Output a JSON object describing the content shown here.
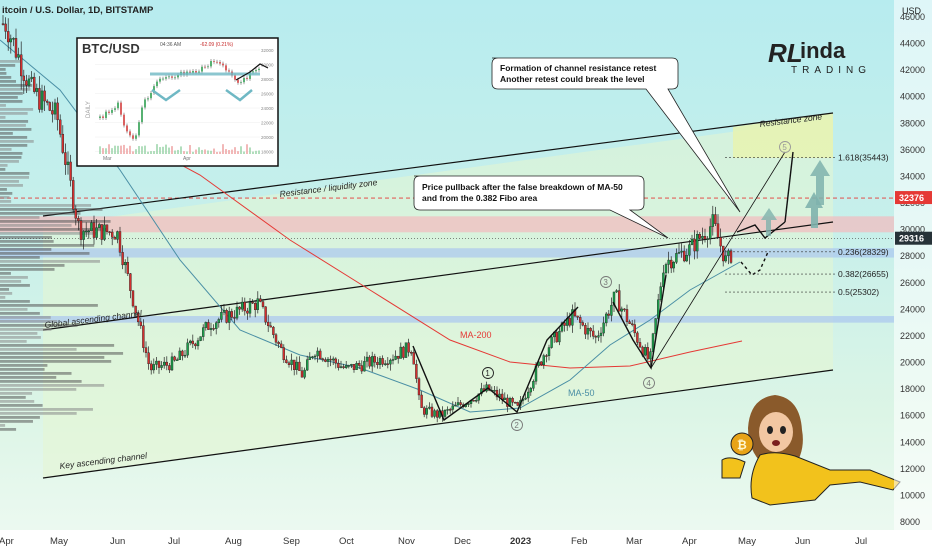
{
  "header": {
    "symbol_line": "itcoin / U.S. Dollar, 1D, BITSTAMP",
    "currency": "USD"
  },
  "logo": {
    "text_top": "inda",
    "text_bottom": "TRADING",
    "initials": "RL"
  },
  "price_axis": {
    "ticks": [
      "46000",
      "44000",
      "42000",
      "40000",
      "38000",
      "36000",
      "34000",
      "32000",
      "30000",
      "28000",
      "26000",
      "24000",
      "22000",
      "20000",
      "18000",
      "16000",
      "14000",
      "12000",
      "10000",
      "8000"
    ],
    "badges": [
      {
        "text": "32376",
        "color": "#e53935"
      },
      {
        "text": "29316",
        "color": "#263238"
      }
    ]
  },
  "time_axis": [
    "Apr",
    "May",
    "Jun",
    "Jul",
    "Aug",
    "Sep",
    "Oct",
    "Nov",
    "Dec",
    "2023",
    "Feb",
    "Mar",
    "Apr",
    "May",
    "Jun",
    "Jul"
  ],
  "annotations": {
    "resistance_zone": "Resistance zone",
    "liquidity_zone": "Resistance / liquidity zone",
    "global_channel": "Global ascending channel",
    "key_channel": "Key ascending channel",
    "ma200": "MA-200",
    "ma50": "MA-50",
    "callout_top_line1": "Formation of channel resistance retest",
    "callout_top_line2": "Another retest could break the level",
    "callout_mid_line1": "Price pullback after the false breakdown of MA-50",
    "callout_mid_line2": "and from the 0.382 Fibo area",
    "wave_labels": [
      "1",
      "2",
      "3",
      "4",
      "5"
    ]
  },
  "fibo_levels": [
    {
      "label": "1.618(35443)",
      "price": 35443
    },
    {
      "label": "0.236(28329)",
      "price": 28329
    },
    {
      "label": "0.382(26655)",
      "price": 26655
    },
    {
      "label": "0.5(25302)",
      "price": 25302
    }
  ],
  "inset": {
    "symbol": "BTC/USD",
    "time": "04:36 AM",
    "change": "-62.09 (0.21%)",
    "side_label": "DAILY",
    "ticks": [
      "32000",
      "30000",
      "28000",
      "26000",
      "24000",
      "22000",
      "20000",
      "18000"
    ],
    "months": [
      "Mar",
      "Apr"
    ]
  },
  "chart_data": {
    "type": "candlestick",
    "title": "Bitcoin / U.S. Dollar, 1D, BITSTAMP",
    "ylabel": "USD",
    "ylim": [
      8000,
      46000
    ],
    "x_labels": [
      "Apr",
      "May",
      "Jun",
      "Jul",
      "Aug",
      "Sep",
      "Oct",
      "Nov",
      "Dec",
      "2023",
      "Feb",
      "Mar",
      "Apr",
      "May",
      "Jun",
      "Jul"
    ],
    "close_path": [
      {
        "t": "Apr 2022",
        "v": 45500
      },
      {
        "t": "Apr 15",
        "v": 40500
      },
      {
        "t": "May 1",
        "v": 38500
      },
      {
        "t": "May 12",
        "v": 30000
      },
      {
        "t": "Jun 1",
        "v": 29800
      },
      {
        "t": "Jun 13",
        "v": 22500
      },
      {
        "t": "Jun 18",
        "v": 19500
      },
      {
        "t": "Jul 1",
        "v": 20000
      },
      {
        "t": "Jul 20",
        "v": 23000
      },
      {
        "t": "Aug 14",
        "v": 24500
      },
      {
        "t": "Aug 26",
        "v": 21000
      },
      {
        "t": "Sep 7",
        "v": 19000
      },
      {
        "t": "Sep 13",
        "v": 21000
      },
      {
        "t": "Oct 1",
        "v": 19500
      },
      {
        "t": "Oct 25",
        "v": 20500
      },
      {
        "t": "Nov 5",
        "v": 21200
      },
      {
        "t": "Nov 9",
        "v": 16500
      },
      {
        "t": "Nov 20",
        "v": 16000
      },
      {
        "t": "Dec 14",
        "v": 18000
      },
      {
        "t": "Dec 30",
        "v": 16500
      },
      {
        "t": "Jan 14 2023",
        "v": 21000
      },
      {
        "t": "Jan 28",
        "v": 23500
      },
      {
        "t": "Feb 10",
        "v": 21800
      },
      {
        "t": "Feb 20",
        "v": 25000
      },
      {
        "t": "Mar 10",
        "v": 20000
      },
      {
        "t": "Mar 18",
        "v": 27500
      },
      {
        "t": "Apr 1",
        "v": 28500
      },
      {
        "t": "Apr 14",
        "v": 30500
      },
      {
        "t": "Apr 21",
        "v": 27500
      },
      {
        "t": "Apr 28",
        "v": 29316
      }
    ],
    "series": [
      {
        "name": "MA-200",
        "color": "#e53935",
        "values": [
          {
            "t": "Jun 2022",
            "v": 38500
          },
          {
            "t": "Sep",
            "v": 27500
          },
          {
            "t": "Nov",
            "v": 22000
          },
          {
            "t": "Jan 2023",
            "v": 19800
          },
          {
            "t": "Mar",
            "v": 20000
          },
          {
            "t": "May",
            "v": 21500
          }
        ]
      },
      {
        "name": "MA-50",
        "color": "#4a8fa5",
        "values": [
          {
            "t": "Apr 2022",
            "v": 42500
          },
          {
            "t": "Jun",
            "v": 30500
          },
          {
            "t": "Aug",
            "v": 22000
          },
          {
            "t": "Oct",
            "v": 19500
          },
          {
            "t": "Dec",
            "v": 17000
          },
          {
            "t": "Feb 2023",
            "v": 19500
          },
          {
            "t": "Apr",
            "v": 26500
          },
          {
            "t": "May",
            "v": 28000
          }
        ]
      }
    ],
    "levels": [
      {
        "name": "Resistance / liquidity zone",
        "low": 29800,
        "high": 31000
      },
      {
        "name": "Support band",
        "low": 27900,
        "high": 28600
      },
      {
        "name": "Support band",
        "low": 23000,
        "high": 23500
      },
      {
        "name": "Dashed resistance",
        "value": 32376
      }
    ]
  }
}
